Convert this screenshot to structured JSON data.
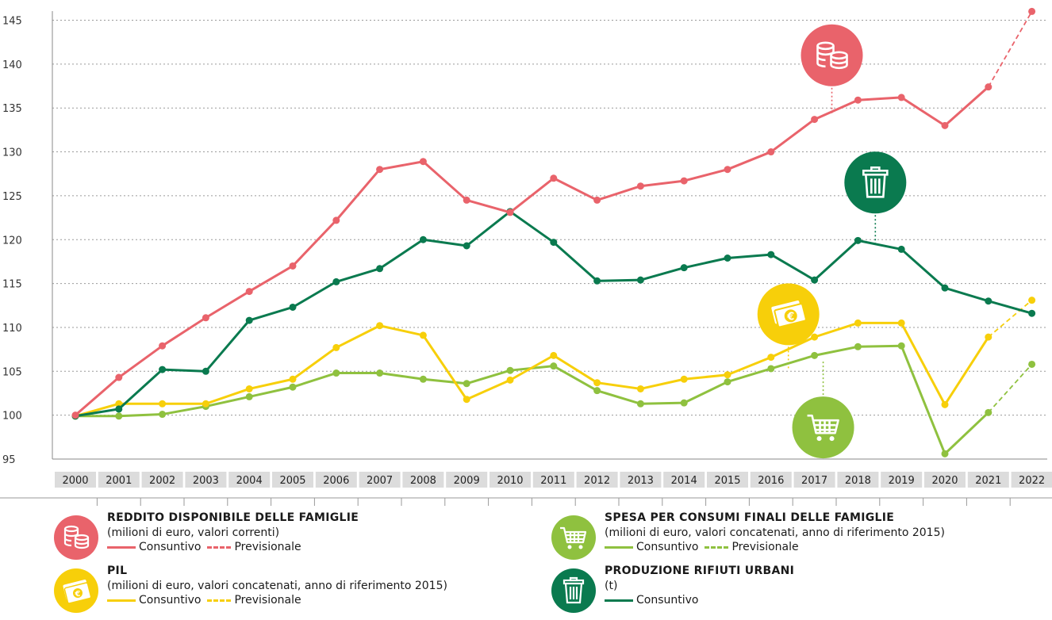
{
  "colors": {
    "reddito": "#e9636b",
    "rifiuti": "#0a7a4f",
    "pil": "#f7cf0a",
    "spesa": "#8fc13f"
  },
  "chart_data": {
    "type": "line",
    "title": "",
    "xlabel": "",
    "ylabel": "",
    "ylim": [
      95,
      146
    ],
    "yticks": [
      95,
      100,
      105,
      110,
      115,
      120,
      125,
      130,
      135,
      140,
      145
    ],
    "grid": true,
    "x": [
      "2000",
      "2001",
      "2002",
      "2003",
      "2004",
      "2005",
      "2006",
      "2007",
      "2008",
      "2009",
      "2010",
      "2011",
      "2012",
      "2013",
      "2014",
      "2015",
      "2016",
      "2017",
      "2018",
      "2019",
      "2020",
      "2021",
      "2022"
    ],
    "series": [
      {
        "key": "reddito",
        "name": "REDDITO DISPONIBILE DELLE FAMIGLIE",
        "color": "#e9636b",
        "values": [
          100,
          104.3,
          107.9,
          111.1,
          114.1,
          117.0,
          122.2,
          128.0,
          128.9,
          124.5,
          123.1,
          127.0,
          124.5,
          126.1,
          126.7,
          128.0,
          130.0,
          133.7,
          135.9,
          136.2,
          133.0,
          137.4,
          146.0
        ],
        "forecast_from_index": 21
      },
      {
        "key": "rifiuti",
        "name": "PRODUZIONE RIFIUTI URBANI",
        "color": "#0a7a4f",
        "values": [
          99.9,
          100.7,
          105.2,
          105.0,
          110.8,
          112.3,
          115.2,
          116.7,
          120.0,
          119.3,
          123.2,
          119.7,
          115.3,
          115.4,
          116.8,
          117.9,
          118.3,
          115.4,
          119.9,
          118.9,
          114.5,
          113.0,
          111.6
        ],
        "forecast_from_index": null
      },
      {
        "key": "pil",
        "name": "PIL",
        "color": "#f7cf0a",
        "values": [
          99.9,
          101.3,
          101.3,
          101.3,
          103.0,
          104.1,
          107.7,
          110.2,
          109.1,
          101.8,
          104.0,
          106.8,
          103.7,
          103.0,
          104.1,
          104.6,
          106.6,
          108.9,
          110.5,
          110.5,
          101.2,
          108.9,
          113.1
        ],
        "forecast_from_index": 21
      },
      {
        "key": "spesa",
        "name": "SPESA PER CONSUMI FINALI DELLE FAMIGLIE",
        "color": "#8fc13f",
        "values": [
          99.9,
          99.9,
          100.1,
          101.0,
          102.1,
          103.2,
          104.8,
          104.8,
          104.1,
          103.6,
          105.1,
          105.6,
          102.8,
          101.3,
          101.4,
          103.8,
          105.3,
          106.8,
          107.8,
          107.9,
          95.6,
          100.3,
          105.8
        ],
        "forecast_from_index": 21
      }
    ],
    "icons": [
      {
        "series": "reddito",
        "icon": "coins-icon",
        "x_index": 17.4,
        "y_value": 141.0,
        "anchor_value": 134.3
      },
      {
        "series": "rifiuti",
        "icon": "trash-bin-icon",
        "x_index": 18.4,
        "y_value": 126.5,
        "anchor_value": 119.3
      },
      {
        "series": "pil",
        "icon": "banknote-euro-icon",
        "x_index": 16.4,
        "y_value": 111.5,
        "anchor_value": 105.3
      },
      {
        "series": "spesa",
        "icon": "shopping-cart-icon",
        "x_index": 17.2,
        "y_value": 98.6,
        "anchor_value": 106.3
      }
    ]
  },
  "legend": [
    {
      "key": "reddito",
      "icon": "coins-icon",
      "title": "REDDITO DISPONIBILE DELLE FAMIGLIE",
      "subtitle": "(milioni di euro, valori correnti)",
      "actual_label": "Consuntivo",
      "forecast_label": "Previsionale"
    },
    {
      "key": "pil",
      "icon": "banknote-euro-icon",
      "title": "PIL",
      "subtitle": "(milioni di euro, valori concatenati, anno di riferimento 2015)",
      "actual_label": "Consuntivo",
      "forecast_label": "Previsionale"
    },
    {
      "key": "spesa",
      "icon": "shopping-cart-icon",
      "title": "SPESA PER CONSUMI FINALI DELLE FAMIGLIE",
      "subtitle": "(milioni di euro, valori concatenati, anno di riferimento 2015)",
      "actual_label": "Consuntivo",
      "forecast_label": "Previsionale"
    },
    {
      "key": "rifiuti",
      "icon": "trash-bin-icon",
      "title": "PRODUZIONE RIFIUTI URBANI",
      "subtitle": "(t)",
      "actual_label": "Consuntivo",
      "forecast_label": ""
    }
  ]
}
